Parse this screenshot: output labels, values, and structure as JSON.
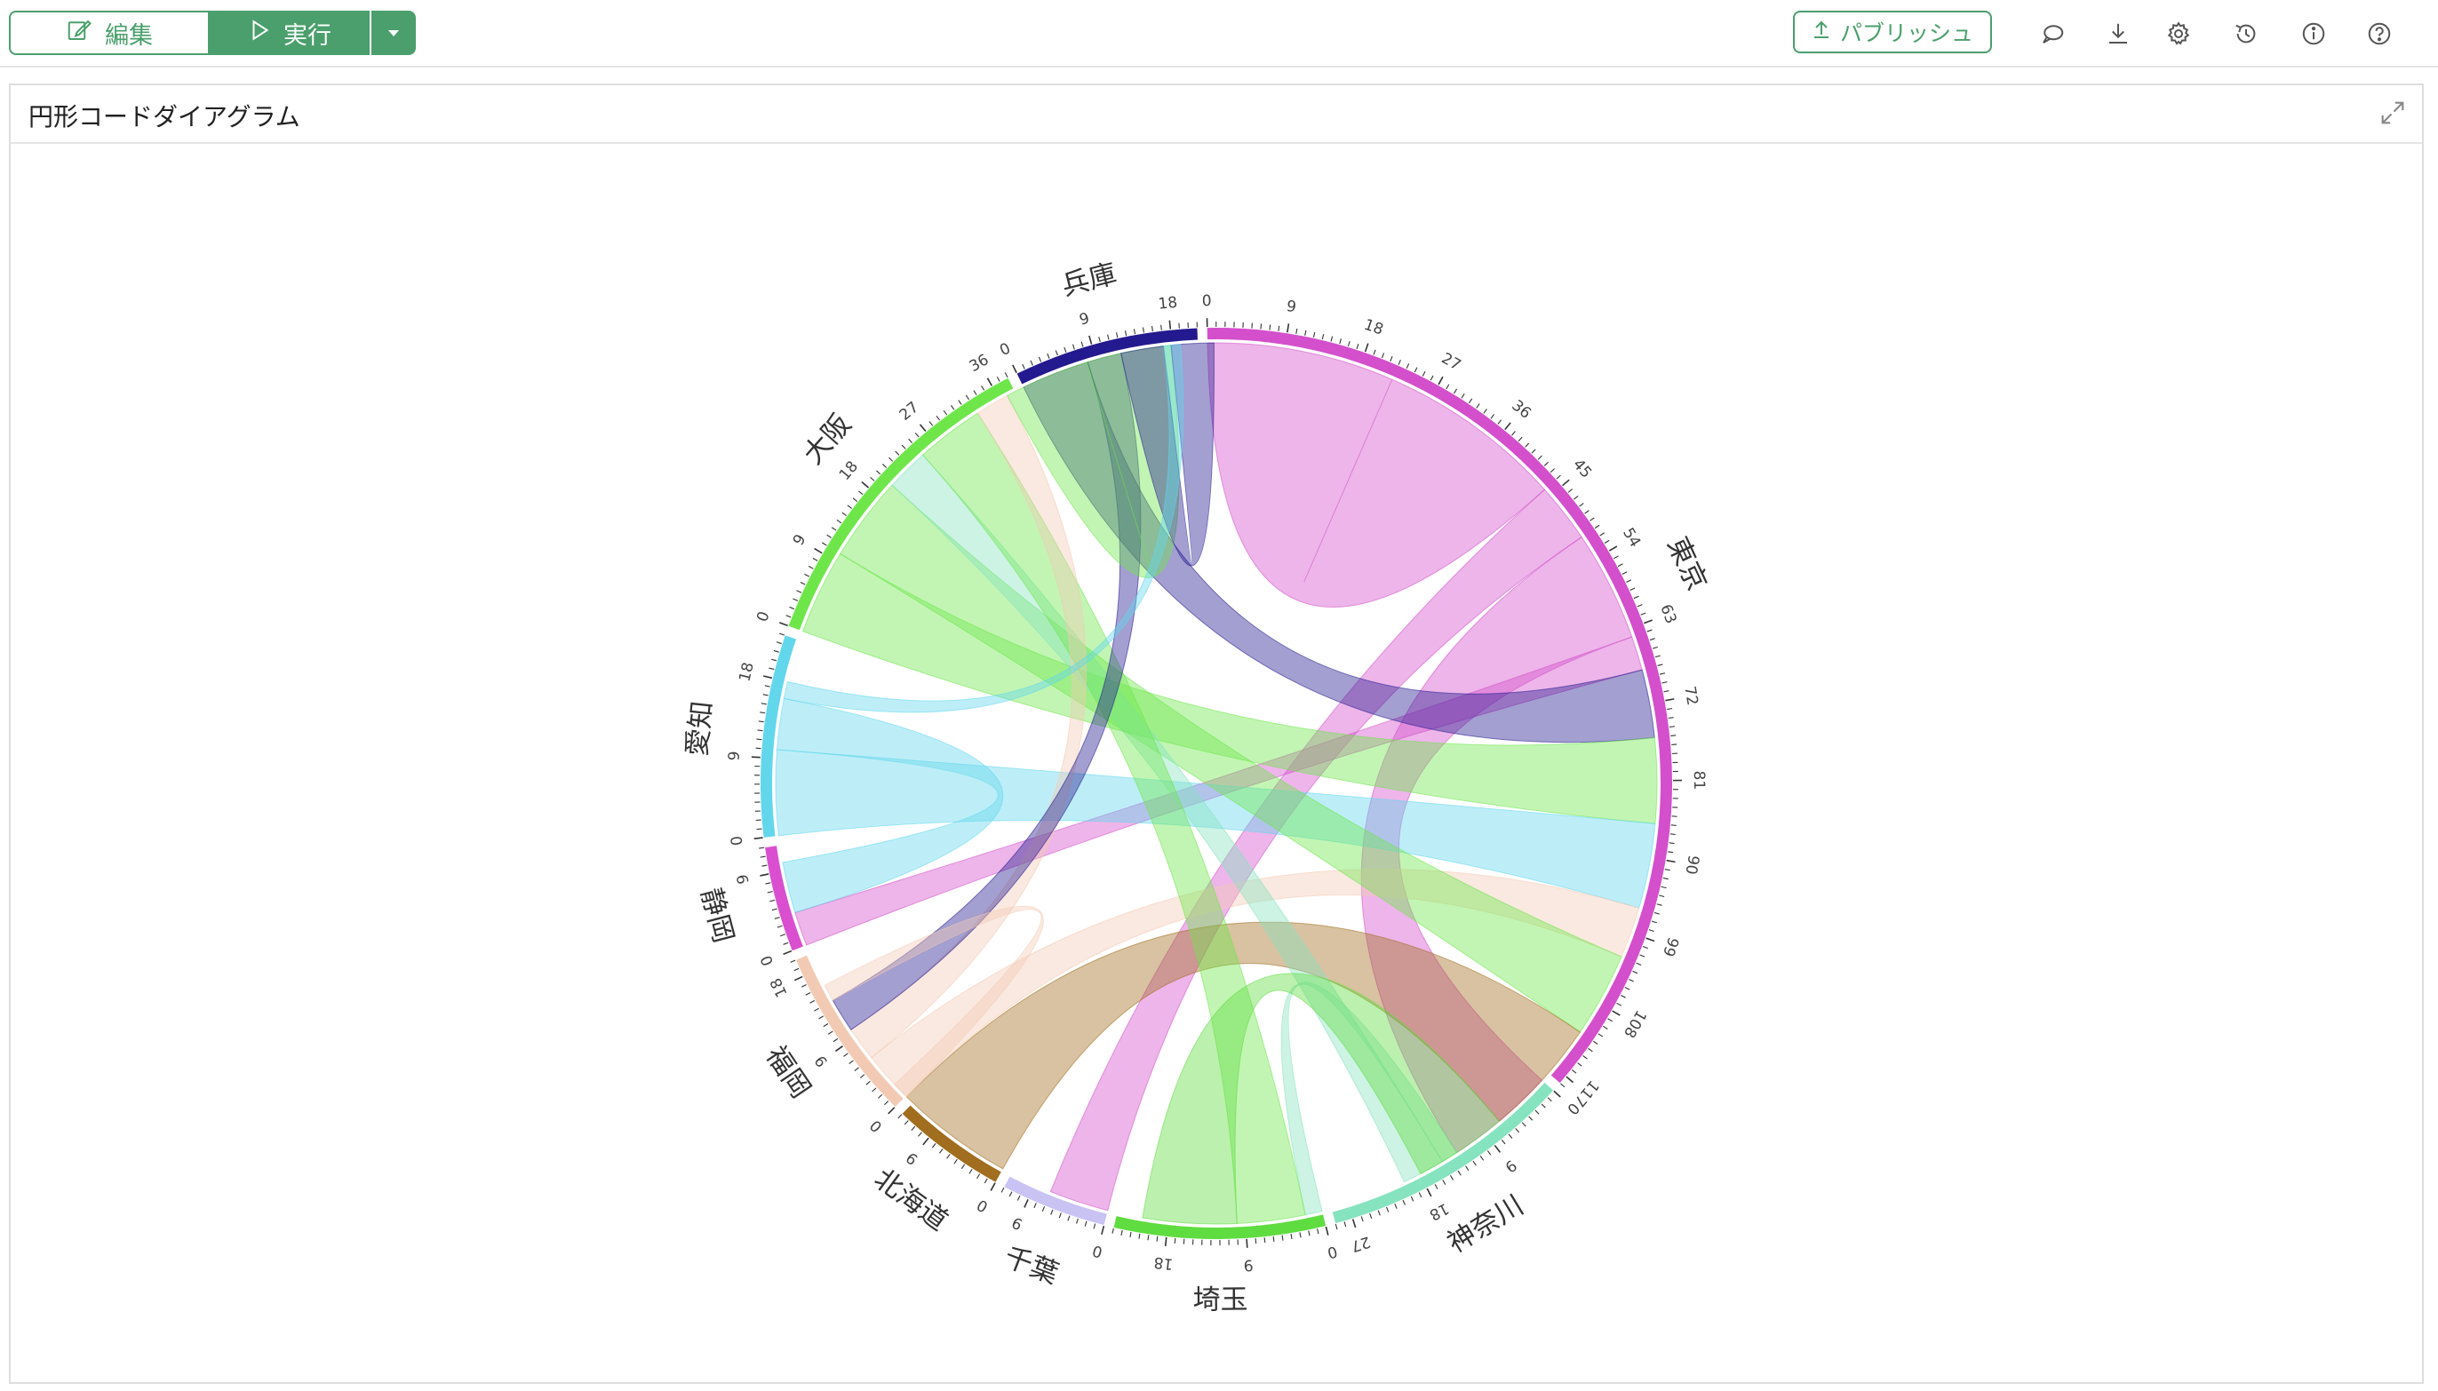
{
  "toolbar": {
    "edit_label": "編集",
    "run_label": "実行",
    "publish_label": "パブリッシュ",
    "icons": [
      "comment-icon",
      "download-icon",
      "gear-icon",
      "history-icon",
      "info-icon",
      "help-icon"
    ]
  },
  "panel": {
    "title": "円形コードダイアグラム"
  },
  "colors": {
    "accent": "#4a9f6c"
  },
  "chart_data": {
    "type": "chord",
    "title": "",
    "tick_step": 9,
    "groups": [
      {
        "name": "東京",
        "total": 118,
        "color": "#d44fcb"
      },
      {
        "name": "神奈川",
        "total": 29,
        "color": "#86e3bf"
      },
      {
        "name": "埼玉",
        "total": 24,
        "color": "#5fdc3f"
      },
      {
        "name": "千葉",
        "total": 12,
        "color": "#c9c3f4"
      },
      {
        "name": "北海道",
        "total": 13,
        "color": "#a16d1e"
      },
      {
        "name": "福岡",
        "total": 20,
        "color": "#f2cab4"
      },
      {
        "name": "静岡",
        "total": 12,
        "color": "#d94fcf"
      },
      {
        "name": "愛知",
        "total": 23,
        "color": "#62d7ec"
      },
      {
        "name": "大阪",
        "total": 38,
        "color": "#6ee64a"
      },
      {
        "name": "兵庫",
        "total": 21,
        "color": "#241a8f"
      }
    ],
    "links": [
      {
        "source": "東京",
        "target": "東京",
        "value": 22
      },
      {
        "source": "東京",
        "target": "千葉",
        "value": 7
      },
      {
        "source": "東京",
        "target": "神奈川",
        "value": 13
      },
      {
        "source": "東京",
        "target": "静岡",
        "value": 4
      },
      {
        "source": "兵庫",
        "target": "東京",
        "value": 8
      },
      {
        "source": "大阪",
        "target": "東京",
        "value": 10
      },
      {
        "source": "愛知",
        "target": "東京",
        "value": 10
      },
      {
        "source": "福岡",
        "target": "東京",
        "value": 6
      },
      {
        "source": "大阪",
        "target": "東京",
        "value": 10
      },
      {
        "source": "北海道",
        "target": "東京",
        "value": 14
      },
      {
        "source": "神奈川",
        "target": "埼玉",
        "value": 2
      },
      {
        "source": "神奈川",
        "target": "大阪",
        "value": 5
      },
      {
        "source": "大阪",
        "target": "埼玉",
        "value": 8
      },
      {
        "source": "埼玉",
        "target": "東京",
        "value": 11
      },
      {
        "source": "愛知",
        "target": "静岡",
        "value": 6
      },
      {
        "source": "福岡",
        "target": "大阪",
        "value": 4
      },
      {
        "source": "兵庫",
        "target": "福岡",
        "value": 4
      },
      {
        "source": "大阪",
        "target": "大阪",
        "value": 10
      },
      {
        "source": "兵庫",
        "target": "大阪",
        "value": 5
      },
      {
        "source": "福岡",
        "target": "北海道",
        "value": 2
      },
      {
        "source": "愛知",
        "target": "兵庫",
        "value": 2
      }
    ]
  }
}
